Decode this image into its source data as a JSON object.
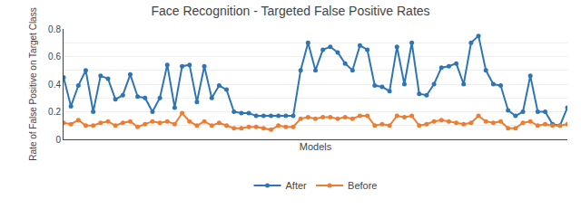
{
  "chart_data": {
    "type": "line",
    "title": "Face Recognition - Targeted False Positive Rates",
    "xlabel": "Models",
    "ylabel": "Rate of False Positive on Target Class",
    "categories": [
      null,
      null,
      null,
      null,
      null,
      null,
      null,
      null,
      null,
      null,
      null,
      null,
      null,
      null,
      null,
      null,
      null,
      null,
      null,
      null,
      null,
      null,
      null,
      null,
      null,
      null,
      null,
      null,
      null,
      null,
      null,
      null,
      null,
      null,
      null,
      null,
      null,
      null,
      null,
      null,
      null,
      null,
      null,
      null,
      null,
      null,
      null,
      null,
      null,
      null,
      null,
      null,
      null,
      null,
      null,
      null,
      null,
      null,
      null,
      null,
      null,
      null,
      null,
      null,
      null,
      null,
      null,
      null,
      null
    ],
    "series": [
      {
        "name": "After",
        "color": "#2E75B6",
        "marker": "circle",
        "values": [
          0.45,
          0.24,
          0.39,
          0.5,
          0.2,
          0.46,
          0.44,
          0.29,
          0.32,
          0.47,
          0.31,
          0.3,
          0.2,
          0.3,
          0.54,
          0.23,
          0.53,
          0.54,
          0.27,
          0.53,
          0.3,
          0.39,
          0.36,
          0.2,
          0.19,
          0.19,
          0.17,
          0.17,
          0.17,
          0.17,
          0.17,
          0.17,
          0.5,
          0.7,
          0.5,
          0.65,
          0.67,
          0.63,
          0.55,
          0.5,
          0.68,
          0.65,
          0.39,
          0.38,
          0.35,
          0.67,
          0.4,
          0.7,
          0.33,
          0.32,
          0.4,
          0.52,
          0.53,
          0.55,
          0.4,
          0.7,
          0.75,
          0.5,
          0.4,
          0.39,
          0.21,
          0.17,
          0.2,
          0.46,
          0.2,
          0.2,
          0.11,
          0.1,
          0.23
        ]
      },
      {
        "name": "Before",
        "color": "#ED7D31",
        "marker": "circle",
        "values": [
          0.12,
          0.11,
          0.14,
          0.1,
          0.1,
          0.12,
          0.13,
          0.1,
          0.12,
          0.13,
          0.09,
          0.11,
          0.13,
          0.12,
          0.13,
          0.11,
          0.19,
          0.13,
          0.1,
          0.13,
          0.1,
          0.12,
          0.1,
          0.08,
          0.08,
          0.09,
          0.09,
          0.08,
          0.07,
          0.1,
          0.09,
          0.09,
          0.15,
          0.16,
          0.15,
          0.16,
          0.16,
          0.15,
          0.16,
          0.15,
          0.17,
          0.17,
          0.1,
          0.11,
          0.1,
          0.17,
          0.16,
          0.17,
          0.1,
          0.11,
          0.13,
          0.14,
          0.13,
          0.12,
          0.11,
          0.12,
          0.17,
          0.13,
          0.12,
          0.13,
          0.08,
          0.08,
          0.12,
          0.13,
          0.1,
          0.11,
          0.1,
          0.1,
          0.11
        ]
      }
    ],
    "ylim": [
      0,
      0.8
    ],
    "yticks": [
      0,
      {
        "value": 0.1,
        "label": ""
      },
      0.2,
      {
        "value": 0.3,
        "label": ""
      },
      0.4,
      {
        "value": 0.5,
        "label": ""
      },
      0.6,
      {
        "value": 0.7,
        "label": ""
      },
      0.8
    ],
    "grid": true,
    "legend": "bottom",
    "tick_labels": "y"
  }
}
